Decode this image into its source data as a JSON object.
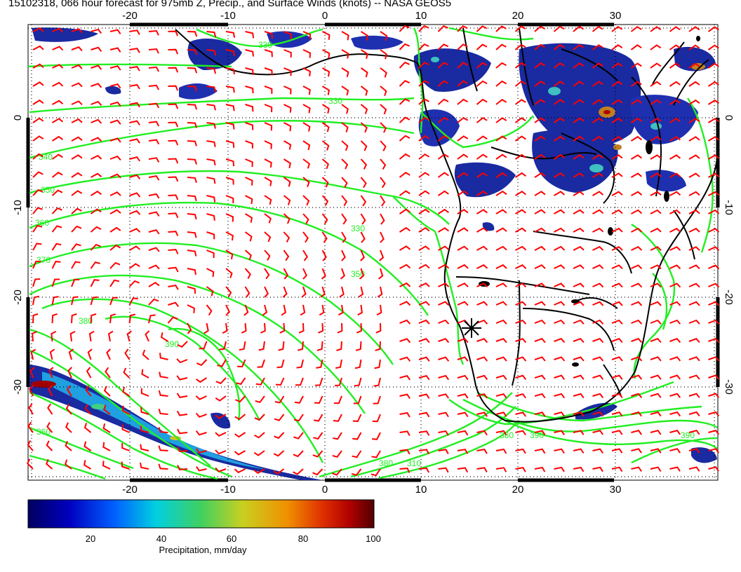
{
  "title": "15102318, 066 hour forecast for 975mb Z, Precip., and Surface Winds (knots) -- NASA GEOS5",
  "axes": {
    "lon_ticks": [
      "-20",
      "-10",
      "0",
      "10",
      "20",
      "30"
    ],
    "lat_ticks": [
      "0",
      "-10",
      "-20",
      "-30"
    ]
  },
  "contour_labels": [
    "330",
    "330",
    "340",
    "350",
    "360",
    "370",
    "380",
    "390",
    "360",
    "380",
    "390",
    "380",
    "390",
    "310",
    "330",
    "350"
  ],
  "colorbar": {
    "label": "Precipitation, mm/day",
    "ticks": [
      "20",
      "40",
      "60",
      "80",
      "100"
    ],
    "range": [
      0,
      100
    ],
    "colors": [
      "#000080",
      "#0000ff",
      "#00a0ff",
      "#00e0e0",
      "#40e060",
      "#c0d020",
      "#f0a000",
      "#e04000",
      "#c00000",
      "#600000"
    ]
  },
  "colors": {
    "wind_barbs": "#ff0000",
    "height_contours": "#00ee00",
    "coastlines": "#000000",
    "grid": "#000000"
  },
  "marker": {
    "symbol": "asterisk",
    "lon": 15,
    "lat": -23.5
  }
}
